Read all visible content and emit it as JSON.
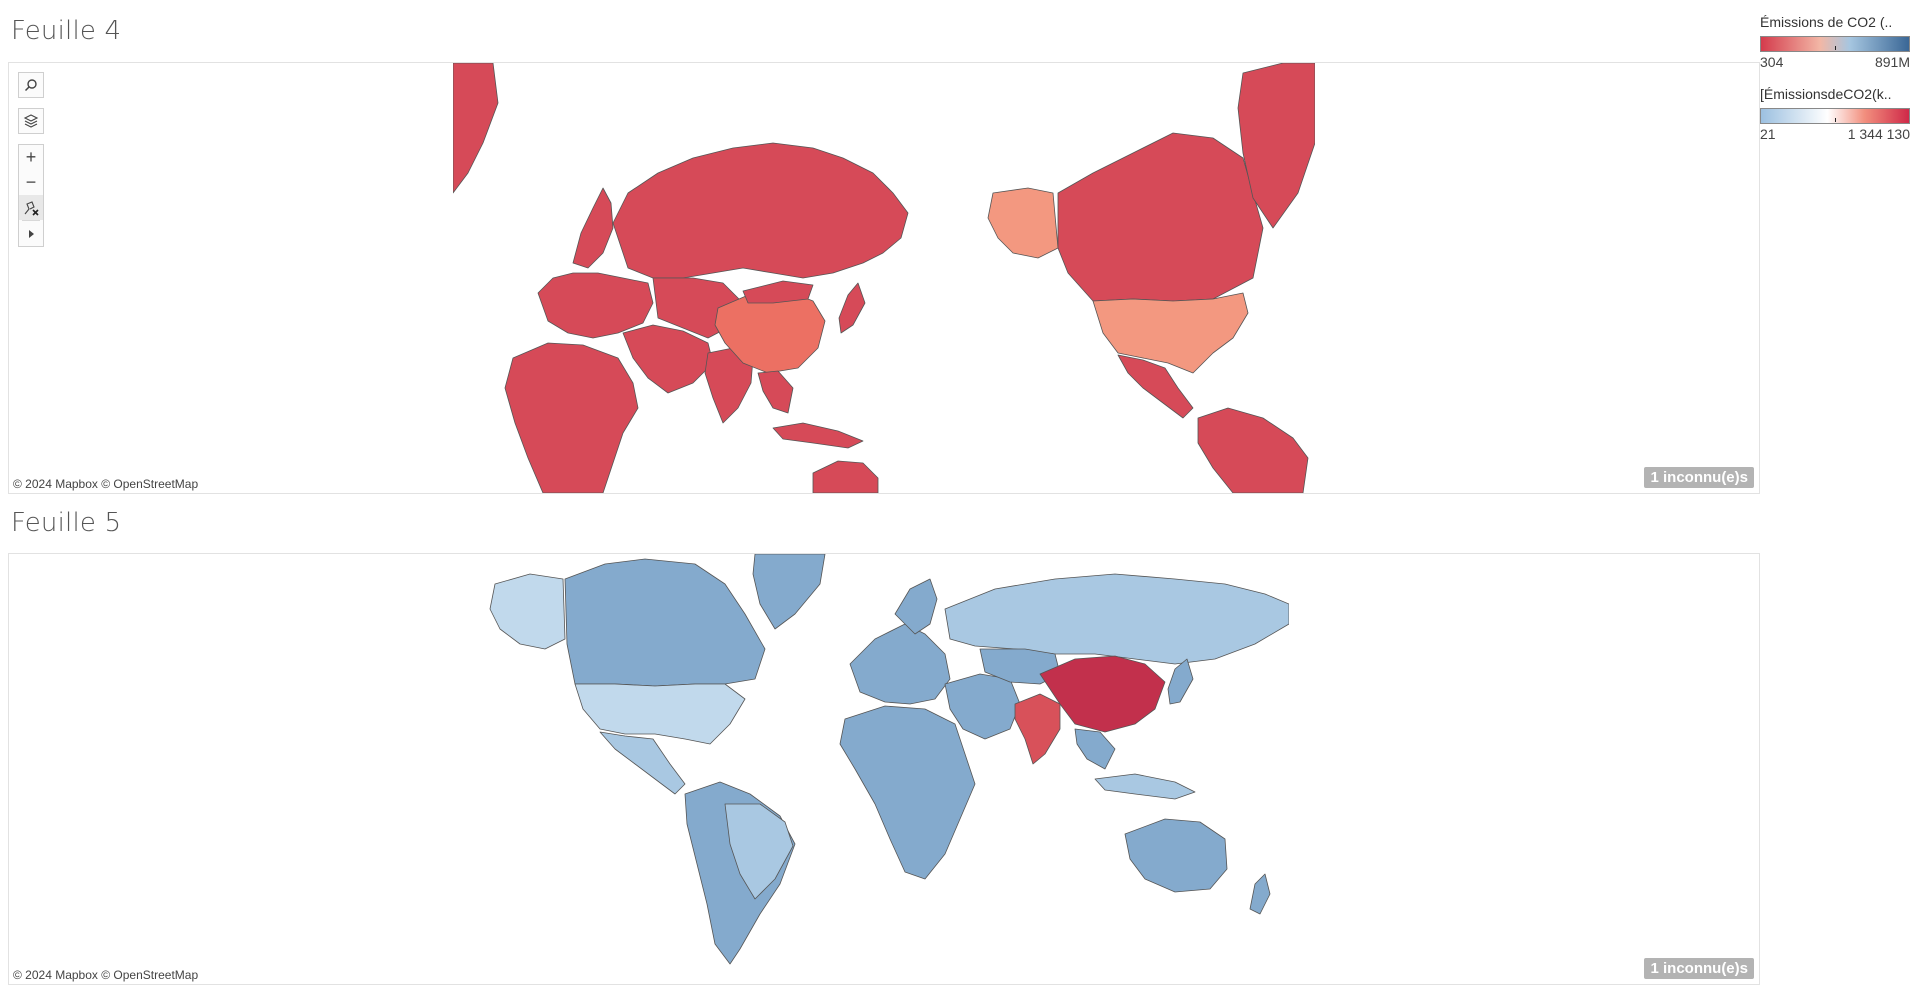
{
  "sheets": [
    {
      "title": "Feuille 4",
      "attribution": "© 2024 Mapbox © OpenStreetMap",
      "unknown_badge": "1 inconnu(e)s"
    },
    {
      "title": "Feuille 5",
      "attribution": "© 2024 Mapbox © OpenStreetMap",
      "unknown_badge": "1 inconnu(e)s"
    }
  ],
  "legends": [
    {
      "title": "Émissions de CO2 (..",
      "min_label": "304",
      "max_label": "891M",
      "colors": [
        "#d43b4c",
        "#f2b7a6",
        "#a6c6e0",
        "#3a6796"
      ]
    },
    {
      "title": "[ÉmissionsdeCO2(k..",
      "min_label": "21",
      "max_label": "1 344 130",
      "colors": [
        "#9cc0e0",
        "#ffffff",
        "#f28f7e",
        "#cf2948"
      ]
    }
  ],
  "colors": {
    "sheet4_base": "#d64a58",
    "sheet4_usa": "#f39880",
    "sheet4_china": "#ec7063",
    "sheet5_base": "#84aacd",
    "sheet5_light": "#a9c8e2",
    "sheet5_usa": "#c1d9ec",
    "sheet5_china": "#c2304c",
    "sheet5_india": "#d8515a",
    "border": "#555555"
  },
  "toolbar": {
    "icons": [
      "search-icon",
      "layers-icon",
      "zoom-in-icon",
      "zoom-out-icon",
      "pin-reset-icon",
      "expand-arrow-icon"
    ]
  }
}
